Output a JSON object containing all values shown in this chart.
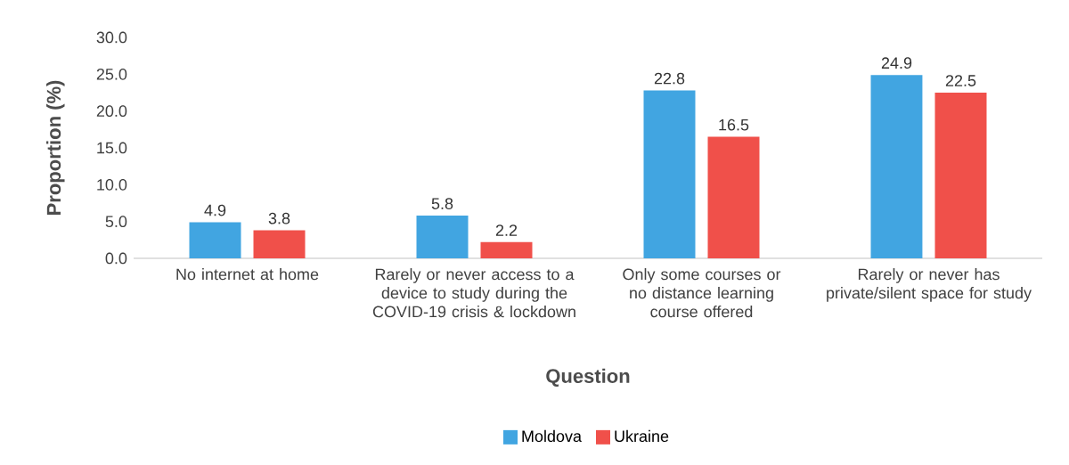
{
  "chart_data": {
    "type": "bar",
    "xlabel": "Question",
    "ylabel": "Proportion (%)",
    "categories": [
      "No internet at home",
      "Rarely or never access to a device to study during the COVID-19 crisis & lockdown",
      "Only some courses or no distance learning course offered",
      "Rarely or never has private/silent space for study"
    ],
    "series": [
      {
        "name": "Moldova",
        "color": "#41a5e1",
        "values": [
          4.9,
          5.8,
          22.8,
          24.9
        ]
      },
      {
        "name": "Ukraine",
        "color": "#f0504a",
        "values": [
          3.8,
          2.2,
          16.5,
          22.5
        ]
      }
    ],
    "ylim": [
      0,
      30
    ],
    "yticks": [
      {
        "value": 0,
        "label": "0.0"
      },
      {
        "value": 5,
        "label": "5.0"
      },
      {
        "value": 10,
        "label": "10.0"
      },
      {
        "value": 15,
        "label": "15.0"
      },
      {
        "value": 20,
        "label": "20.0"
      },
      {
        "value": 25,
        "label": "25.0"
      },
      {
        "value": 30,
        "label": "30.0"
      }
    ],
    "data_labels": true,
    "legend": "bottom",
    "grid": false
  }
}
